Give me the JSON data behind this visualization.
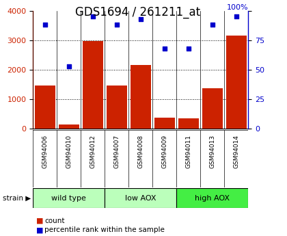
{
  "title": "GDS1694 / 261211_at",
  "categories": [
    "GSM94006",
    "GSM94010",
    "GSM94012",
    "GSM94007",
    "GSM94008",
    "GSM94009",
    "GSM94011",
    "GSM94013",
    "GSM94014"
  ],
  "bar_values": [
    1450,
    150,
    2980,
    1470,
    2160,
    380,
    350,
    1380,
    3150
  ],
  "scatter_values": [
    88,
    53,
    95,
    88,
    93,
    68,
    68,
    88,
    95
  ],
  "bar_color": "#cc2200",
  "scatter_color": "#0000cc",
  "ylim_left": [
    0,
    4000
  ],
  "ylim_right": [
    0,
    100
  ],
  "yticks_left": [
    0,
    1000,
    2000,
    3000,
    4000
  ],
  "yticks_right": [
    0,
    25,
    50,
    75,
    100
  ],
  "groups": [
    {
      "label": "wild type",
      "start": 0,
      "end": 3,
      "color": "#bbffbb"
    },
    {
      "label": "low AOX",
      "start": 3,
      "end": 6,
      "color": "#bbffbb"
    },
    {
      "label": "high AOX",
      "start": 6,
      "end": 9,
      "color": "#44ee44"
    }
  ],
  "strain_label": "strain",
  "legend_bar_label": "count",
  "legend_scatter_label": "percentile rank within the sample",
  "background_color": "#ffffff",
  "plot_bg_color": "#ffffff",
  "tickbox_bg_color": "#d0d0d0",
  "title_fontsize": 12,
  "tick_fontsize": 8,
  "label_fontsize": 6.5
}
